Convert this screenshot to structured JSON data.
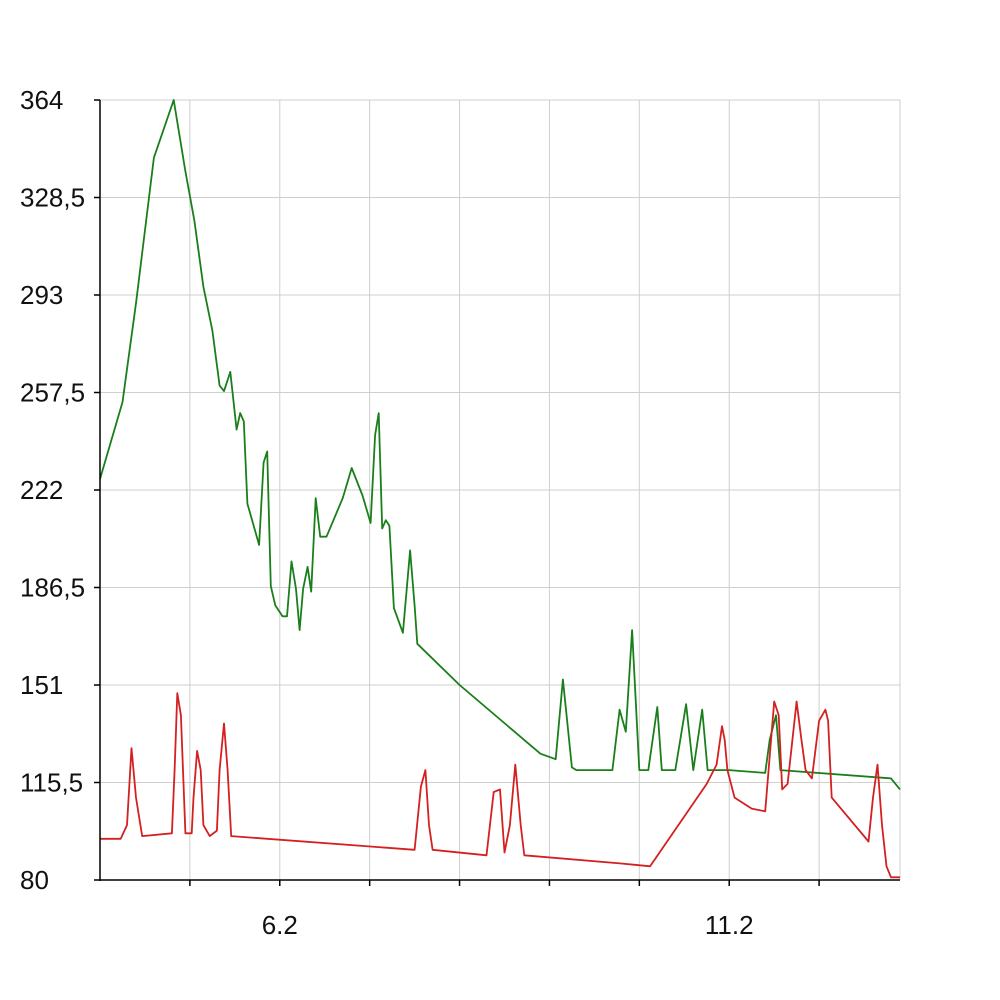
{
  "chart_data": {
    "type": "line",
    "title": "",
    "xlabel": "",
    "ylabel": "",
    "xlim": [
      4.2,
      13.1
    ],
    "ylim": [
      80,
      364
    ],
    "grid": true,
    "legend": "none",
    "x_ticks": [
      {
        "value": 6.2,
        "label": "6.2"
      },
      {
        "value": 11.2,
        "label": "11.2"
      }
    ],
    "x_grid_values": [
      5.2,
      6.2,
      7.2,
      8.2,
      9.2,
      10.2,
      11.2,
      12.2
    ],
    "y_ticks": [
      {
        "value": 80,
        "label": "80"
      },
      {
        "value": 115.5,
        "label": "115,5"
      },
      {
        "value": 151,
        "label": "151"
      },
      {
        "value": 186.5,
        "label": "186,5"
      },
      {
        "value": 222,
        "label": "222"
      },
      {
        "value": 257.5,
        "label": "257,5"
      },
      {
        "value": 293,
        "label": "293"
      },
      {
        "value": 328.5,
        "label": "328,5"
      },
      {
        "value": 364,
        "label": "364"
      }
    ],
    "series": [
      {
        "color": "#1a7f1a",
        "points": [
          [
            4.2,
            226
          ],
          [
            4.45,
            254
          ],
          [
            4.6,
            290
          ],
          [
            4.8,
            343
          ],
          [
            5.02,
            364
          ],
          [
            5.15,
            338
          ],
          [
            5.25,
            320
          ],
          [
            5.35,
            296
          ],
          [
            5.45,
            280
          ],
          [
            5.53,
            260
          ],
          [
            5.58,
            258
          ],
          [
            5.65,
            265
          ],
          [
            5.72,
            244
          ],
          [
            5.76,
            250
          ],
          [
            5.8,
            247
          ],
          [
            5.84,
            217
          ],
          [
            5.97,
            202
          ],
          [
            6.02,
            232
          ],
          [
            6.06,
            236
          ],
          [
            6.1,
            187
          ],
          [
            6.15,
            180
          ],
          [
            6.23,
            176
          ],
          [
            6.28,
            176
          ],
          [
            6.33,
            196
          ],
          [
            6.38,
            186
          ],
          [
            6.42,
            171
          ],
          [
            6.46,
            186
          ],
          [
            6.51,
            194
          ],
          [
            6.55,
            185
          ],
          [
            6.6,
            219
          ],
          [
            6.65,
            205
          ],
          [
            6.72,
            205
          ],
          [
            6.9,
            219
          ],
          [
            7.0,
            230
          ],
          [
            7.12,
            220
          ],
          [
            7.21,
            210
          ],
          [
            7.26,
            242
          ],
          [
            7.3,
            250
          ],
          [
            7.34,
            208
          ],
          [
            7.38,
            211
          ],
          [
            7.42,
            209
          ],
          [
            7.47,
            179
          ],
          [
            7.57,
            170
          ],
          [
            7.65,
            200
          ],
          [
            7.7,
            180
          ],
          [
            7.73,
            166
          ],
          [
            8.2,
            151
          ],
          [
            9.1,
            126
          ],
          [
            9.27,
            124
          ],
          [
            9.35,
            153
          ],
          [
            9.45,
            121
          ],
          [
            9.5,
            120
          ],
          [
            9.9,
            120
          ],
          [
            9.98,
            142
          ],
          [
            10.05,
            134
          ],
          [
            10.12,
            171
          ],
          [
            10.2,
            120
          ],
          [
            10.3,
            120
          ],
          [
            10.4,
            143
          ],
          [
            10.45,
            120
          ],
          [
            10.6,
            120
          ],
          [
            10.72,
            144
          ],
          [
            10.8,
            120
          ],
          [
            10.9,
            142
          ],
          [
            10.96,
            120
          ],
          [
            11.2,
            120
          ],
          [
            11.6,
            119
          ],
          [
            11.65,
            131
          ],
          [
            11.72,
            140
          ],
          [
            11.77,
            120
          ],
          [
            13.0,
            117
          ],
          [
            13.1,
            113
          ]
        ]
      },
      {
        "color": "#d42020",
        "points": [
          [
            4.2,
            95
          ],
          [
            4.43,
            95
          ],
          [
            4.5,
            100
          ],
          [
            4.55,
            128
          ],
          [
            4.6,
            110
          ],
          [
            4.67,
            96
          ],
          [
            5.0,
            97
          ],
          [
            5.03,
            120
          ],
          [
            5.06,
            148
          ],
          [
            5.1,
            140
          ],
          [
            5.15,
            97
          ],
          [
            5.22,
            97
          ],
          [
            5.24,
            110
          ],
          [
            5.28,
            127
          ],
          [
            5.32,
            120
          ],
          [
            5.35,
            100
          ],
          [
            5.42,
            96
          ],
          [
            5.5,
            98
          ],
          [
            5.53,
            120
          ],
          [
            5.58,
            137
          ],
          [
            5.62,
            120
          ],
          [
            5.66,
            96
          ],
          [
            7.7,
            91
          ],
          [
            7.77,
            114
          ],
          [
            7.82,
            120
          ],
          [
            7.86,
            100
          ],
          [
            7.9,
            91
          ],
          [
            8.5,
            89
          ],
          [
            8.58,
            112
          ],
          [
            8.65,
            113
          ],
          [
            8.7,
            90
          ],
          [
            8.76,
            100
          ],
          [
            8.82,
            122
          ],
          [
            8.88,
            100
          ],
          [
            8.92,
            89
          ],
          [
            10.0,
            86
          ],
          [
            10.32,
            85
          ],
          [
            10.95,
            115
          ],
          [
            11.06,
            122
          ],
          [
            11.12,
            136
          ],
          [
            11.15,
            131
          ],
          [
            11.18,
            120
          ],
          [
            11.26,
            110
          ],
          [
            11.45,
            106
          ],
          [
            11.6,
            105
          ],
          [
            11.65,
            125
          ],
          [
            11.7,
            145
          ],
          [
            11.75,
            140
          ],
          [
            11.79,
            113
          ],
          [
            11.85,
            115
          ],
          [
            11.9,
            130
          ],
          [
            11.95,
            145
          ],
          [
            12.0,
            132
          ],
          [
            12.05,
            120
          ],
          [
            12.12,
            117
          ],
          [
            12.2,
            138
          ],
          [
            12.27,
            142
          ],
          [
            12.3,
            138
          ],
          [
            12.34,
            110
          ],
          [
            12.75,
            94
          ],
          [
            12.8,
            110
          ],
          [
            12.85,
            122
          ],
          [
            12.9,
            100
          ],
          [
            12.95,
            85
          ],
          [
            13.0,
            81
          ],
          [
            13.1,
            81
          ]
        ]
      }
    ]
  }
}
